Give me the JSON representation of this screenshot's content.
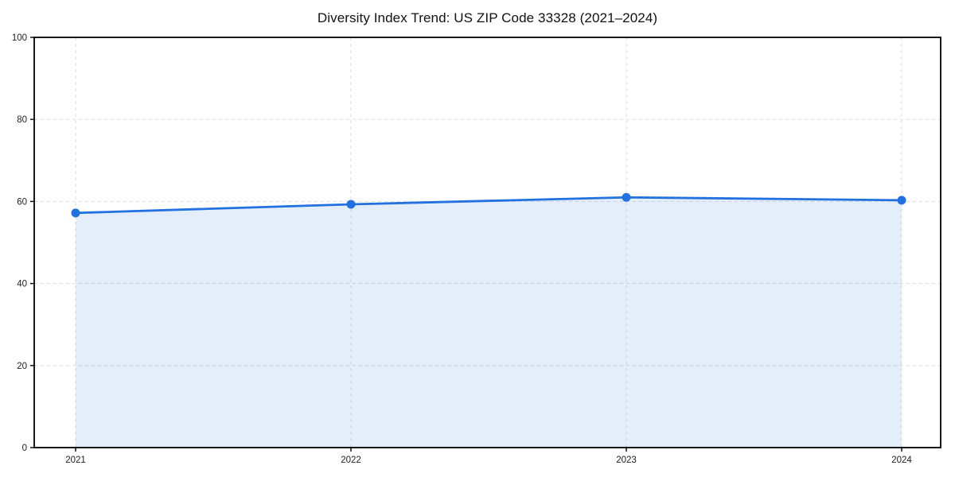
{
  "figure": {
    "background": "#ffffff"
  },
  "chart_data": {
    "type": "area",
    "title": "Diversity Index Trend: US ZIP Code 33328 (2021–2024)",
    "categories": [
      "2021",
      "2022",
      "2023",
      "2024"
    ],
    "values": [
      57.2,
      59.3,
      61.0,
      60.3
    ],
    "xlabel": "",
    "ylabel": "",
    "ylim": [
      0,
      100
    ],
    "yticks": [
      0,
      20,
      40,
      60,
      80,
      100
    ],
    "grid": true,
    "grid_style": "dashed",
    "legend_position": "none",
    "marker": "circle",
    "colors": {
      "line": "#2171e0",
      "marker": "#2171e0",
      "fill": "rgba(33,113,224,0.12)",
      "grid": "#dcdcdc",
      "spine": "#000000",
      "tick_text": "#222222",
      "title_text": "#111111",
      "background": "#ffffff"
    }
  }
}
